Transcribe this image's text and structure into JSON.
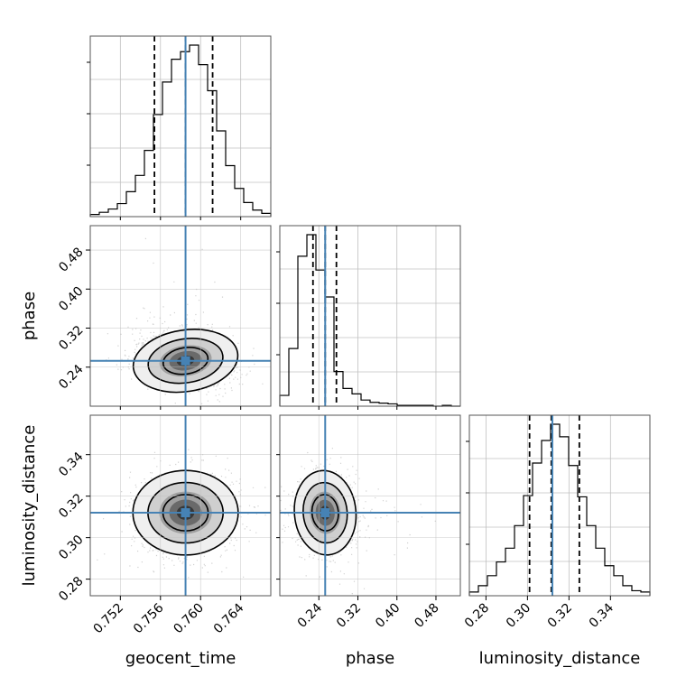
{
  "chart_data": {
    "type": "corner",
    "parameters": [
      "geocent_time",
      "phase",
      "luminosity_distance"
    ],
    "axis_labels": {
      "geocent_time": "geocent_time",
      "phase": "phase",
      "luminosity_distance": "luminosity_distance"
    },
    "ranges": {
      "geocent_time": [
        0.749,
        0.767
      ],
      "phase": [
        0.16,
        0.53
      ],
      "luminosity_distance": [
        0.272,
        0.359
      ]
    },
    "ticks": {
      "geocent_time": [
        {
          "value": 0.752,
          "label": "0.752"
        },
        {
          "value": 0.756,
          "label": "0.756"
        },
        {
          "value": 0.76,
          "label": "0.760"
        },
        {
          "value": 0.764,
          "label": "0.764"
        }
      ],
      "phase": [
        {
          "value": 0.24,
          "label": "0.24"
        },
        {
          "value": 0.32,
          "label": "0.32"
        },
        {
          "value": 0.4,
          "label": "0.40"
        },
        {
          "value": 0.48,
          "label": "0.48"
        }
      ],
      "luminosity_distance": [
        {
          "value": 0.28,
          "label": "0.28"
        },
        {
          "value": 0.3,
          "label": "0.30"
        },
        {
          "value": 0.32,
          "label": "0.32"
        },
        {
          "value": 0.34,
          "label": "0.34"
        }
      ]
    },
    "truths": {
      "geocent_time": 0.7585,
      "phase": 0.253,
      "luminosity_distance": 0.312
    },
    "quantiles": {
      "geocent_time": [
        0.7554,
        0.7585,
        0.7612
      ],
      "phase": [
        0.228,
        0.253,
        0.276
      ],
      "luminosity_distance": [
        0.301,
        0.3115,
        0.325
      ]
    },
    "histograms": {
      "geocent_time": {
        "edges_range": [
          0.749,
          0.767
        ],
        "counts": [
          2,
          4,
          7,
          12,
          23,
          38,
          61,
          94,
          124,
          145,
          152,
          158,
          140,
          116,
          79,
          47,
          26,
          13,
          6,
          3
        ]
      },
      "phase": {
        "edges_range": [
          0.16,
          0.53
        ],
        "counts": [
          14,
          75,
          195,
          223,
          177,
          142,
          45,
          23,
          16,
          8,
          5,
          4,
          3,
          1,
          1,
          1,
          1,
          0,
          1,
          0
        ]
      },
      "luminosity_distance": {
        "edges_range": [
          0.272,
          0.359
        ],
        "counts": [
          3,
          8,
          16,
          27,
          38,
          56,
          80,
          106,
          124,
          137,
          127,
          104,
          79,
          56,
          38,
          24,
          16,
          8,
          4,
          3
        ]
      }
    },
    "correlations": {
      "phase|geocent_time": -0.25,
      "luminosity_distance|geocent_time": 0.0,
      "luminosity_distance|phase": -0.15
    },
    "sigma_scale": {
      "geocent_time": 0.0025,
      "phase": 0.03,
      "luminosity_distance": 0.0097
    },
    "colors": {
      "truth": "#4682b4",
      "histogram": "#000000",
      "grid": "#c0c0c0",
      "contour": "#000000"
    },
    "grid": true
  }
}
